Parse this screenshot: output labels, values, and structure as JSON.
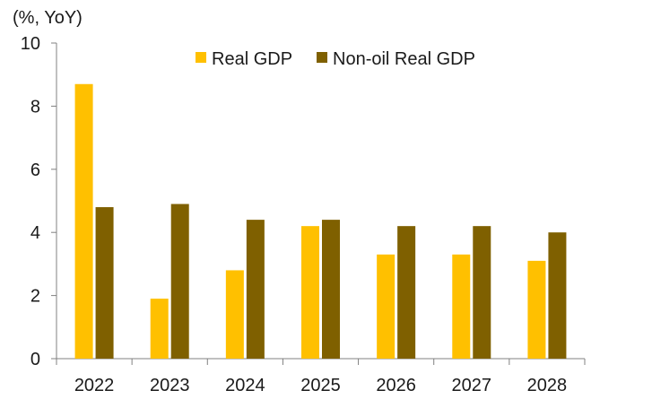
{
  "chart_data": {
    "type": "bar",
    "title": "",
    "ylabel": "(%, YoY)",
    "xlabel": "",
    "categories": [
      "2022",
      "2023",
      "2024",
      "2025",
      "2026",
      "2027",
      "2028"
    ],
    "series": [
      {
        "name": "Real GDP",
        "color": "#FFC000",
        "values": [
          8.7,
          1.9,
          2.8,
          4.2,
          3.3,
          3.3,
          3.1
        ]
      },
      {
        "name": "Non-oil Real GDP",
        "color": "#7F6000",
        "values": [
          4.8,
          4.9,
          4.4,
          4.4,
          4.2,
          4.2,
          4.0
        ]
      }
    ],
    "ylim": [
      0,
      10
    ],
    "yticks": [
      "0",
      "2",
      "4",
      "6",
      "8",
      "10"
    ],
    "grid": false,
    "legend_position": "top"
  }
}
